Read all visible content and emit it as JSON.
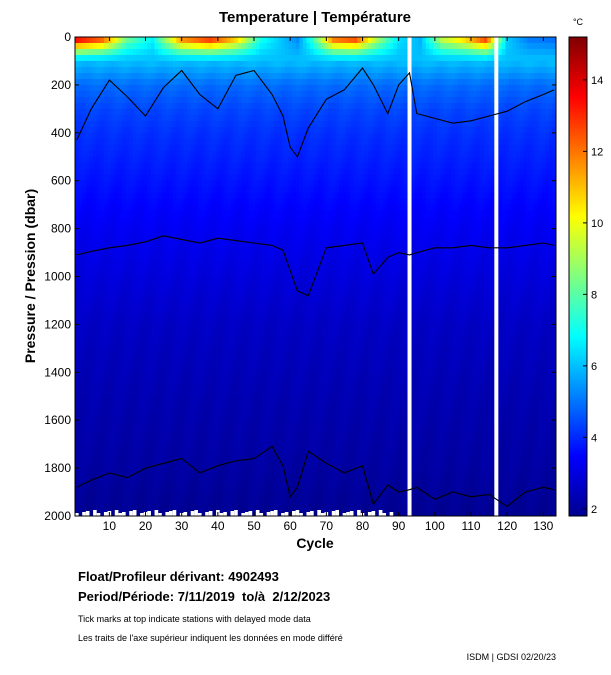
{
  "chart_data": {
    "type": "heatmap",
    "title": "Temperature | Température",
    "xlabel": "Cycle",
    "ylabel": "Pressure / Pression (dbar)",
    "colorbar_unit": "°C",
    "x_range": [
      1,
      133
    ],
    "y_range": [
      0,
      2000
    ],
    "y_inverted": true,
    "x_ticks": [
      "10",
      "20",
      "30",
      "40",
      "50",
      "60",
      "70",
      "80",
      "90",
      "100",
      "110",
      "120",
      "130"
    ],
    "y_ticks": [
      "0",
      "200",
      "400",
      "600",
      "800",
      "1000",
      "1200",
      "1400",
      "1600",
      "1800",
      "2000"
    ],
    "colorbar_range": [
      1.8,
      15.2
    ],
    "colorbar_ticks": [
      "2",
      "4",
      "6",
      "8",
      "10",
      "12",
      "14"
    ],
    "contour_levels": [
      3,
      4
    ],
    "contours": [
      {
        "level": 3,
        "x": [
          1,
          5,
          10,
          15,
          20,
          25,
          30,
          35,
          40,
          45,
          50,
          55,
          58,
          62,
          65,
          70,
          75,
          80,
          83,
          87,
          90,
          93,
          95,
          100,
          105,
          110,
          115,
          120,
          125,
          130,
          133
        ],
        "pressure": [
          910,
          895,
          880,
          870,
          855,
          830,
          845,
          860,
          840,
          850,
          860,
          870,
          890,
          1060,
          1080,
          880,
          870,
          860,
          990,
          920,
          900,
          910,
          900,
          880,
          880,
          870,
          880,
          880,
          870,
          860,
          870
        ]
      },
      {
        "level": 4,
        "x": [
          1,
          5,
          10,
          15,
          20,
          25,
          30,
          35,
          40,
          45,
          50,
          55,
          58,
          60,
          62,
          65,
          70,
          75,
          80,
          83,
          87,
          90,
          93,
          95,
          100,
          105,
          110,
          115,
          120,
          125,
          130,
          133
        ],
        "pressure": [
          430,
          300,
          180,
          250,
          330,
          210,
          140,
          240,
          300,
          160,
          140,
          240,
          330,
          460,
          500,
          380,
          260,
          220,
          130,
          200,
          320,
          200,
          150,
          320,
          340,
          360,
          350,
          330,
          310,
          270,
          240,
          220
        ]
      },
      {
        "level": 2,
        "x": [
          1,
          5,
          10,
          15,
          20,
          25,
          30,
          35,
          40,
          45,
          50,
          55,
          58,
          60,
          62,
          65,
          70,
          75,
          80,
          83,
          87,
          90,
          93,
          95,
          100,
          105,
          110,
          115,
          120,
          125,
          130,
          133
        ],
        "pressure": [
          1880,
          1850,
          1820,
          1840,
          1800,
          1780,
          1760,
          1820,
          1790,
          1770,
          1760,
          1710,
          1790,
          1920,
          1880,
          1730,
          1780,
          1820,
          1790,
          1950,
          1870,
          1900,
          1890,
          1880,
          1930,
          1900,
          1920,
          1910,
          1960,
          1900,
          1880,
          1890
        ]
      }
    ],
    "surface_profile": {
      "x": [
        1,
        8,
        15,
        22,
        30,
        38,
        45,
        52,
        58,
        62,
        66,
        72,
        78,
        84,
        90,
        96,
        102,
        108,
        114,
        120,
        126,
        133
      ],
      "temp": [
        14.6,
        13.2,
        8.5,
        6.8,
        12.4,
        13.8,
        11.5,
        7.2,
        6.0,
        5.2,
        7.5,
        12.8,
        13.5,
        9.5,
        6.5,
        5.8,
        9.8,
        11.2,
        13.6,
        6.2,
        5.0,
        4.8
      ]
    },
    "temp_at_depth": {
      "pressure": [
        0,
        100,
        200,
        300,
        400,
        600,
        800,
        1000,
        1200,
        1500,
        1800,
        2000
      ],
      "temp": [
        null,
        6.0,
        4.9,
        4.4,
        4.1,
        3.7,
        3.3,
        3.0,
        2.7,
        2.45,
        2.25,
        2.05
      ]
    },
    "data_gaps": [
      93,
      117
    ],
    "delayed_mode_cycles": [
      1,
      3,
      4,
      6,
      7,
      9,
      10,
      12,
      13,
      14,
      16,
      17,
      19,
      20,
      21,
      23,
      24,
      26,
      27,
      28,
      30,
      31,
      33,
      34,
      35,
      37,
      38,
      40,
      41,
      42,
      44,
      45,
      47,
      48,
      49,
      51,
      52,
      54,
      55,
      56,
      58,
      59,
      61,
      62,
      63,
      65,
      66,
      68,
      69,
      70,
      72,
      73,
      75,
      76,
      77,
      79,
      80,
      82,
      83,
      85,
      86,
      88
    ]
  },
  "info": {
    "float_label": "Float/Profileur dérivant:",
    "float_id": "4902493",
    "period_label": "Period/Période:",
    "period_value": "7/11/2019  to/à  2/12/2023",
    "note_en": "Tick marks at top indicate stations with delayed mode data",
    "note_fr": "Les traits de l'axe supérieur indiquent les données en mode différé",
    "credit": "ISDM | GDSI  02/20/23"
  },
  "colors": {
    "background": "#ffffff",
    "gap_fill": "#ffffff",
    "contour_line": "#000000"
  }
}
